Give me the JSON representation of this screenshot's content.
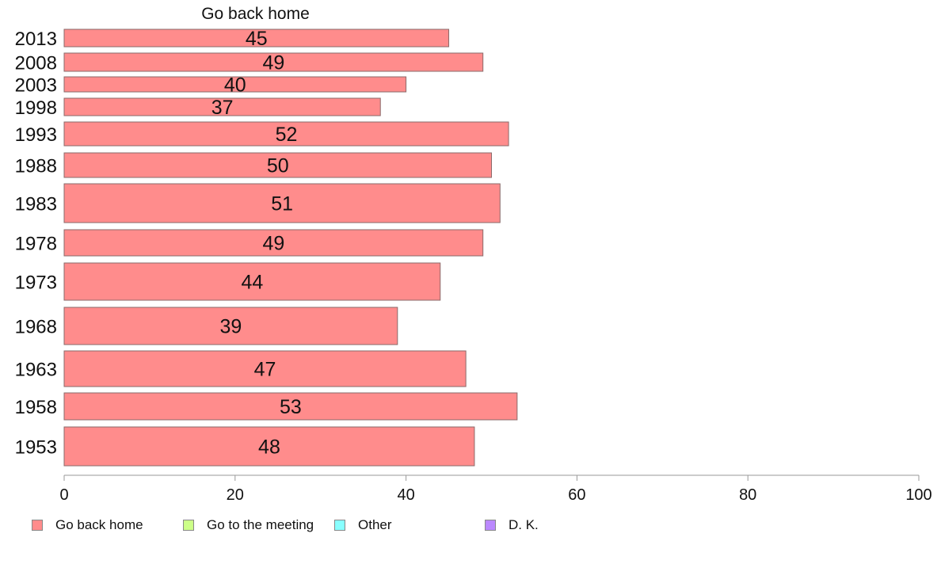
{
  "chart_data": {
    "type": "bar",
    "orientation": "horizontal",
    "title": "Go back home",
    "categories": [
      "2013",
      "2008",
      "2003",
      "1998",
      "1993",
      "1988",
      "1983",
      "1978",
      "1973",
      "1968",
      "1963",
      "1958",
      "1953"
    ],
    "series": [
      {
        "name": "Go back home",
        "values": [
          45,
          49,
          40,
          37,
          52,
          50,
          51,
          49,
          44,
          39,
          47,
          53,
          48
        ]
      }
    ],
    "data_labels": [
      "45",
      "49",
      "40",
      "37",
      "52",
      "50",
      "51",
      "49",
      "44",
      "39",
      "47",
      "53",
      "48"
    ],
    "xlim": [
      0,
      100
    ],
    "xticks": [
      "0",
      "20",
      "40",
      "60",
      "80",
      "100"
    ],
    "grid": false,
    "legend_position": "bottom",
    "legend": [
      {
        "label": "Go back home",
        "color": "#ff8c8c"
      },
      {
        "label": "Go to the meeting",
        "color": "#ccff88"
      },
      {
        "label": "Other",
        "color": "#88ffff"
      },
      {
        "label": "D. K.",
        "color": "#bb88ff"
      }
    ]
  }
}
